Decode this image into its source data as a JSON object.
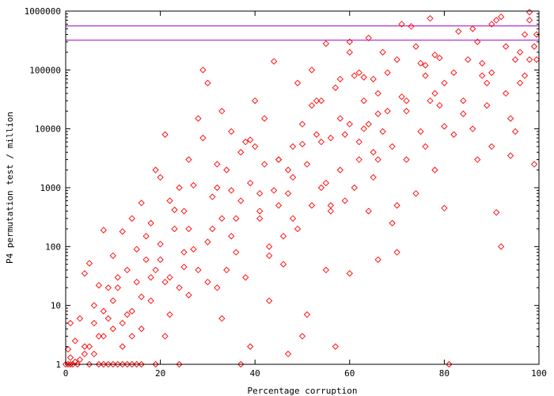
{
  "chart_data": {
    "type": "scatter",
    "xlabel": "Percentage corruption",
    "ylabel": "P4 permutation test / million",
    "xlim": [
      0,
      100
    ],
    "ylim": [
      1,
      1000000
    ],
    "yscale": "log",
    "x_ticks": [
      0,
      20,
      40,
      60,
      80,
      100
    ],
    "x_tick_labels": [
      "0",
      "20",
      "40",
      "60",
      "80",
      "100"
    ],
    "y_ticks": [
      1,
      10,
      100,
      1000,
      10000,
      100000,
      1000000
    ],
    "y_tick_labels": [
      "1",
      "10",
      "100",
      "1000",
      "10000",
      "100000",
      "1000000"
    ],
    "grid": false,
    "legend": "none",
    "marker": "diamond",
    "colors": {
      "points": "#ff0000",
      "reference_lines": "#a000c0",
      "axes": "#000000"
    },
    "reference_lines": [
      {
        "y": 560000
      },
      {
        "y": 320000
      }
    ],
    "series": [
      {
        "points": [
          [
            0,
            1
          ],
          [
            0.5,
            1
          ],
          [
            1,
            1
          ],
          [
            1,
            1.3
          ],
          [
            1.5,
            1
          ],
          [
            2,
            1.1
          ],
          [
            2.5,
            1
          ],
          [
            3,
            1.2
          ],
          [
            0.5,
            1.8
          ],
          [
            1,
            5
          ],
          [
            2,
            2.5
          ],
          [
            3,
            6
          ],
          [
            4,
            2
          ],
          [
            5,
            1
          ],
          [
            6,
            1.5
          ],
          [
            7,
            1
          ],
          [
            8,
            1
          ],
          [
            9,
            1
          ],
          [
            10,
            1
          ],
          [
            11,
            1
          ],
          [
            12,
            1
          ],
          [
            13,
            1
          ],
          [
            14,
            1
          ],
          [
            15,
            1
          ],
          [
            16,
            1
          ],
          [
            4,
            35
          ],
          [
            5,
            52
          ],
          [
            6,
            10
          ],
          [
            7,
            22
          ],
          [
            8,
            3
          ],
          [
            9,
            6
          ],
          [
            10,
            12
          ],
          [
            11,
            20
          ],
          [
            12,
            5
          ],
          [
            13,
            40
          ],
          [
            14,
            8
          ],
          [
            15,
            90
          ],
          [
            16,
            14
          ],
          [
            17,
            150
          ],
          [
            18,
            30
          ],
          [
            19,
            1
          ],
          [
            20,
            60
          ],
          [
            21,
            25
          ],
          [
            22,
            7
          ],
          [
            23,
            200
          ],
          [
            24,
            1
          ],
          [
            25,
            80
          ],
          [
            26,
            15
          ],
          [
            8,
            190
          ],
          [
            10,
            70
          ],
          [
            12,
            180
          ],
          [
            14,
            300
          ],
          [
            16,
            550
          ],
          [
            18,
            250
          ],
          [
            19,
            2000
          ],
          [
            20,
            1500
          ],
          [
            21,
            8000
          ],
          [
            22,
            600
          ],
          [
            24,
            1000
          ],
          [
            25,
            400
          ],
          [
            26,
            3000
          ],
          [
            27,
            1100
          ],
          [
            28,
            15000
          ],
          [
            28,
            40
          ],
          [
            29,
            7000
          ],
          [
            30,
            120
          ],
          [
            31,
            700
          ],
          [
            32,
            2500
          ],
          [
            29,
            100000
          ],
          [
            30,
            60000
          ],
          [
            32,
            20
          ],
          [
            33,
            6
          ],
          [
            34,
            2000
          ],
          [
            35,
            9000
          ],
          [
            36,
            300
          ],
          [
            37,
            4000
          ],
          [
            38,
            6000
          ],
          [
            39,
            6500
          ],
          [
            40,
            30000
          ],
          [
            41,
            800
          ],
          [
            42,
            15000
          ],
          [
            43,
            12
          ],
          [
            44,
            140000
          ],
          [
            45,
            3000
          ],
          [
            46,
            50
          ],
          [
            47,
            1.5
          ],
          [
            48,
            300
          ],
          [
            49,
            60000
          ],
          [
            33,
            20000
          ],
          [
            35,
            900
          ],
          [
            37,
            1
          ],
          [
            39,
            2
          ],
          [
            41,
            300
          ],
          [
            43,
            70
          ],
          [
            45,
            500
          ],
          [
            47,
            2000
          ],
          [
            48,
            5000
          ],
          [
            50,
            3
          ],
          [
            51,
            7
          ],
          [
            52,
            100000
          ],
          [
            53,
            30000
          ],
          [
            54,
            1000
          ],
          [
            55,
            280000
          ],
          [
            56,
            400
          ],
          [
            57,
            2
          ],
          [
            58,
            15000
          ],
          [
            59,
            8000
          ],
          [
            60,
            200000
          ],
          [
            50,
            5500
          ],
          [
            52,
            25000
          ],
          [
            54,
            6000
          ],
          [
            55,
            40
          ],
          [
            56,
            500
          ],
          [
            58,
            70000
          ],
          [
            60,
            35
          ],
          [
            61,
            1000
          ],
          [
            62,
            90000
          ],
          [
            63,
            10000
          ],
          [
            64,
            350000
          ],
          [
            65,
            4000
          ],
          [
            66,
            60
          ],
          [
            67,
            200000
          ],
          [
            68,
            20000
          ],
          [
            69,
            5000
          ],
          [
            70,
            150000
          ],
          [
            71,
            600000
          ],
          [
            72,
            30000
          ],
          [
            60,
            12000
          ],
          [
            62,
            3000
          ],
          [
            64,
            400
          ],
          [
            65,
            70000
          ],
          [
            66,
            18000
          ],
          [
            68,
            90000
          ],
          [
            69,
            250
          ],
          [
            70,
            80
          ],
          [
            71,
            35000
          ],
          [
            72,
            3000
          ],
          [
            73,
            550000
          ],
          [
            74,
            250000
          ],
          [
            75,
            130000
          ],
          [
            76,
            80000
          ],
          [
            77,
            750000
          ],
          [
            78,
            40000
          ],
          [
            79,
            160000
          ],
          [
            80,
            11000
          ],
          [
            74,
            800
          ],
          [
            75,
            9000
          ],
          [
            76,
            5000
          ],
          [
            77,
            30000
          ],
          [
            78,
            180000
          ],
          [
            79,
            25000
          ],
          [
            80,
            450
          ],
          [
            81,
            1
          ],
          [
            82,
            90000
          ],
          [
            83,
            450000
          ],
          [
            84,
            30000
          ],
          [
            85,
            150000
          ],
          [
            86,
            10000
          ],
          [
            87,
            300000
          ],
          [
            88,
            80000
          ],
          [
            89,
            25000
          ],
          [
            90,
            600000
          ],
          [
            91,
            700000
          ],
          [
            86,
            500000
          ],
          [
            87,
            3000
          ],
          [
            88,
            130000
          ],
          [
            89,
            60000
          ],
          [
            90,
            5000
          ],
          [
            91,
            380
          ],
          [
            92,
            100
          ],
          [
            92,
            800000
          ],
          [
            93,
            250000
          ],
          [
            94,
            15000
          ],
          [
            95,
            150000
          ],
          [
            96,
            60000
          ],
          [
            97,
            400000
          ],
          [
            98,
            700000
          ],
          [
            98,
            960000
          ],
          [
            99,
            250000
          ],
          [
            99.5,
            150000
          ],
          [
            93,
            40000
          ],
          [
            94,
            3500
          ],
          [
            95,
            9000
          ],
          [
            96,
            200000
          ],
          [
            97,
            80000
          ],
          [
            98,
            150000
          ],
          [
            99,
            2500
          ],
          [
            99.5,
            400000
          ],
          [
            90,
            90000
          ],
          [
            84,
            18000
          ],
          [
            82,
            8000
          ],
          [
            80,
            60000
          ],
          [
            78,
            2000
          ],
          [
            76,
            120000
          ],
          [
            72,
            20000
          ],
          [
            70,
            500
          ],
          [
            66,
            3000
          ],
          [
            63,
            75000
          ],
          [
            23,
            420
          ],
          [
            24,
            20
          ],
          [
            25,
            45
          ],
          [
            26,
            200
          ],
          [
            27,
            90
          ],
          [
            22,
            30
          ],
          [
            21,
            3
          ],
          [
            20,
            110
          ],
          [
            19,
            40
          ],
          [
            18,
            12
          ],
          [
            17,
            60
          ],
          [
            16,
            4
          ],
          [
            15,
            25
          ],
          [
            14,
            3
          ],
          [
            13,
            7
          ],
          [
            12,
            2
          ],
          [
            11,
            30
          ],
          [
            10,
            4
          ],
          [
            9,
            20
          ],
          [
            8,
            8
          ],
          [
            7,
            3
          ],
          [
            6,
            5
          ],
          [
            5,
            2
          ],
          [
            4,
            1.5
          ],
          [
            30,
            25
          ],
          [
            31,
            200
          ],
          [
            32,
            1000
          ],
          [
            33,
            300
          ],
          [
            34,
            40
          ],
          [
            35,
            150
          ],
          [
            36,
            80
          ],
          [
            37,
            600
          ],
          [
            38,
            30
          ],
          [
            39,
            1200
          ],
          [
            40,
            5000
          ],
          [
            41,
            400
          ],
          [
            42,
            2500
          ],
          [
            43,
            100
          ],
          [
            44,
            900
          ],
          [
            45,
            3000
          ],
          [
            46,
            150
          ],
          [
            47,
            800
          ],
          [
            48,
            1500
          ],
          [
            49,
            200
          ],
          [
            50,
            12000
          ],
          [
            51,
            2500
          ],
          [
            52,
            500
          ],
          [
            53,
            8000
          ],
          [
            54,
            30000
          ],
          [
            55,
            1200
          ],
          [
            56,
            7000
          ],
          [
            57,
            50000
          ],
          [
            58,
            2000
          ],
          [
            59,
            600
          ],
          [
            60,
            300000
          ],
          [
            61,
            80000
          ],
          [
            62,
            6000
          ],
          [
            63,
            30000
          ],
          [
            64,
            12000
          ],
          [
            65,
            1500
          ],
          [
            66,
            40000
          ],
          [
            67,
            9000
          ]
        ]
      }
    ]
  }
}
